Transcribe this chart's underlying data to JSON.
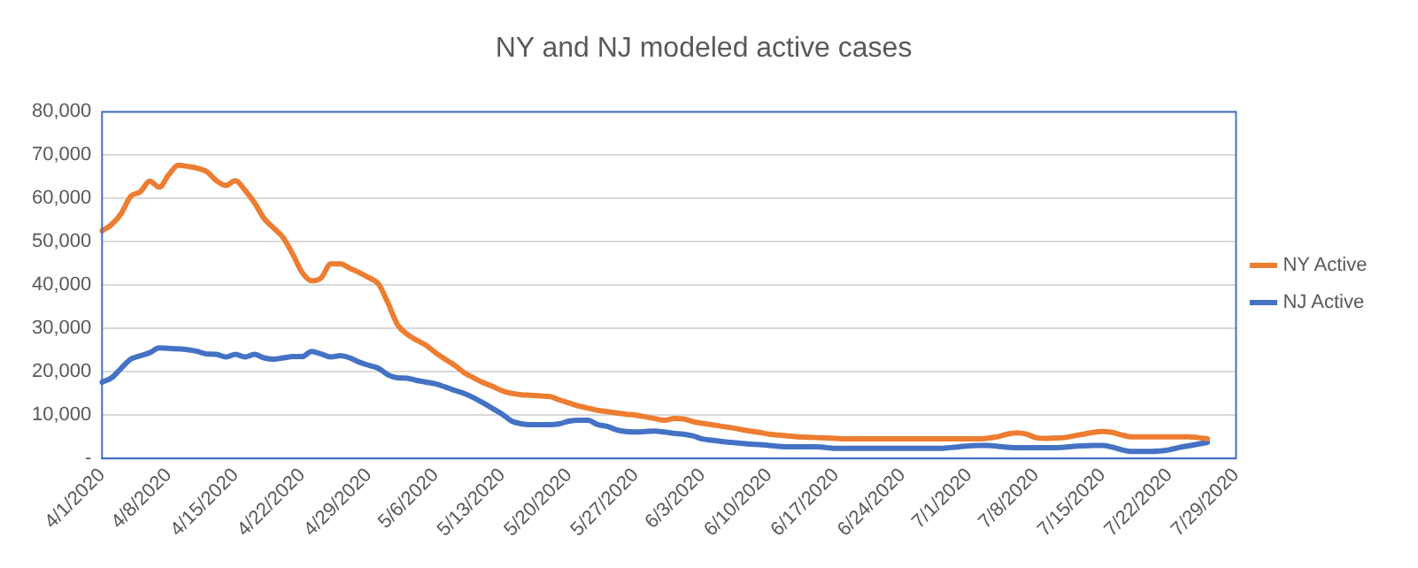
{
  "chart_data": {
    "type": "line",
    "title": "NY and NJ modeled active cases",
    "categories": [
      "4/1/2020",
      null,
      null,
      null,
      null,
      null,
      null,
      "4/8/2020",
      null,
      null,
      null,
      null,
      null,
      null,
      "4/15/2020",
      null,
      null,
      null,
      null,
      null,
      null,
      "4/22/2020",
      null,
      null,
      null,
      null,
      null,
      null,
      "4/29/2020",
      null,
      null,
      null,
      null,
      null,
      null,
      "5/6/2020",
      null,
      null,
      null,
      null,
      null,
      null,
      "5/13/2020",
      null,
      null,
      null,
      null,
      null,
      null,
      "5/20/2020",
      null,
      null,
      null,
      null,
      null,
      null,
      "5/27/2020",
      null,
      null,
      null,
      null,
      null,
      null,
      "6/3/2020",
      null,
      null,
      null,
      null,
      null,
      null,
      "6/10/2020",
      null,
      null,
      null,
      null,
      null,
      null,
      "6/17/2020",
      null,
      null,
      null,
      null,
      null,
      null,
      "6/24/2020",
      null,
      null,
      null,
      null,
      null,
      null,
      "7/1/2020",
      null,
      null,
      null,
      null,
      null,
      null,
      "7/8/2020",
      null,
      null,
      null,
      null,
      null,
      null,
      "7/15/2020",
      null,
      null,
      null,
      null,
      null,
      null,
      "7/22/2020",
      null,
      null,
      null,
      null,
      null,
      null,
      "7/29/2020"
    ],
    "series": [
      {
        "name": "NY Active",
        "color": "#ed7d31",
        "values": [
          52500,
          54000,
          56500,
          60500,
          61500,
          64000,
          62600,
          65500,
          67700,
          67400,
          67000,
          66200,
          64100,
          63000,
          64100,
          61900,
          59000,
          55400,
          53200,
          51000,
          47200,
          42900,
          41000,
          41700,
          44900,
          44900,
          43900,
          42900,
          41700,
          40300,
          35900,
          30900,
          28700,
          27300,
          26100,
          24400,
          22900,
          21500,
          19800,
          18600,
          17500,
          16600,
          15600,
          15000,
          14700,
          14600,
          14400,
          14300,
          13500,
          12800,
          12100,
          11600,
          11100,
          10800,
          10500,
          10200,
          10000,
          9600,
          9200,
          8800,
          9200,
          9100,
          8500,
          8100,
          7800,
          7400,
          7100,
          6700,
          6300,
          6000,
          5600,
          5400,
          5200,
          5000,
          4900,
          4800,
          4700,
          4600,
          4500,
          4500,
          4500,
          4500,
          4500,
          4500,
          4500,
          4500,
          4500,
          4500,
          4500,
          4500,
          4500,
          4500,
          4500,
          4700,
          5000,
          5600,
          5900,
          5600,
          4800,
          4600,
          4700,
          4800,
          5200,
          5600,
          6000,
          6200,
          6000,
          5400,
          5000,
          5000,
          5000,
          5000,
          5000,
          5000,
          5000,
          4800,
          4500,
          null,
          null,
          null
        ]
      },
      {
        "name": "NJ Active",
        "color": "#4472c4",
        "values": [
          17600,
          18600,
          20800,
          22900,
          23700,
          24400,
          25500,
          25400,
          25300,
          25100,
          24700,
          24100,
          24000,
          23400,
          24000,
          23400,
          24000,
          23200,
          22900,
          23200,
          23500,
          23500,
          24700,
          24100,
          23400,
          23700,
          23200,
          22200,
          21500,
          20800,
          19300,
          18600,
          18500,
          18000,
          17600,
          17200,
          16500,
          15700,
          15000,
          14000,
          12800,
          11500,
          10200,
          8600,
          8000,
          7800,
          7800,
          7800,
          8000,
          8600,
          8800,
          8800,
          7800,
          7400,
          6600,
          6200,
          6100,
          6200,
          6300,
          6100,
          5800,
          5600,
          5200,
          4500,
          4200,
          3900,
          3700,
          3500,
          3300,
          3200,
          3000,
          2800,
          2700,
          2700,
          2700,
          2700,
          2500,
          2300,
          2300,
          2300,
          2300,
          2300,
          2300,
          2300,
          2300,
          2300,
          2300,
          2300,
          2300,
          2500,
          2700,
          2900,
          3000,
          3000,
          2800,
          2600,
          2500,
          2500,
          2500,
          2500,
          2500,
          2600,
          2800,
          2900,
          3000,
          3000,
          2600,
          2000,
          1600,
          1600,
          1600,
          1700,
          2000,
          2500,
          2900,
          3300,
          3700,
          null,
          null,
          null
        ]
      }
    ],
    "ylim": [
      0,
      80000
    ],
    "yticks": [
      {
        "value": 0,
        "label": "-"
      },
      {
        "value": 10000,
        "label": "10,000"
      },
      {
        "value": 20000,
        "label": "20,000"
      },
      {
        "value": 30000,
        "label": "30,000"
      },
      {
        "value": 40000,
        "label": "40,000"
      },
      {
        "value": 50000,
        "label": "50,000"
      },
      {
        "value": 60000,
        "label": "60,000"
      },
      {
        "value": 70000,
        "label": "70,000"
      },
      {
        "value": 80000,
        "label": "80,000"
      }
    ],
    "grid": "y",
    "legend": "right",
    "marker": "none",
    "line_style": "solid"
  }
}
